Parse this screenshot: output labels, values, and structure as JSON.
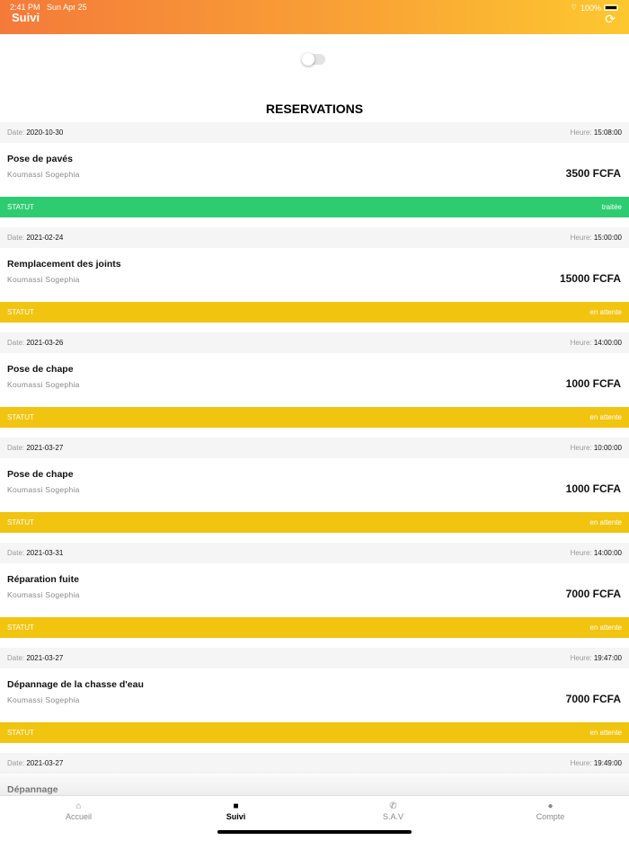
{
  "status_bar": {
    "time": "2:41 PM",
    "date": "Sun Apr 25",
    "battery": "100%"
  },
  "header": {
    "title": "Suivi",
    "refresh_icon": "refresh-icon"
  },
  "toggle": {
    "on": false
  },
  "section_title": "RESERVATIONS",
  "labels": {
    "date": "Date:",
    "heure": "Heure:",
    "statut": "STATUT"
  },
  "colors": {
    "traitee": "#2ecc71",
    "en_attente": "#f1c40f",
    "header_start": "#f47a3a",
    "header_end": "#fdc82f"
  },
  "reservations": [
    {
      "date": "2020-10-30",
      "heure": "15:08:00",
      "name": "Pose de pavés",
      "location": "Koumassi Sogephia",
      "price": "3500 FCFA",
      "status": "traitée"
    },
    {
      "date": "2021-02-24",
      "heure": "15:00:00",
      "name": "Remplacement des joints",
      "location": "Koumassi Sogephia",
      "price": "15000 FCFA",
      "status": "en attente"
    },
    {
      "date": "2021-03-26",
      "heure": "14:00:00",
      "name": "Pose de chape",
      "location": "Koumassi Sogephia",
      "price": "1000 FCFA",
      "status": "en attente"
    },
    {
      "date": "2021-03-27",
      "heure": "10:00:00",
      "name": "Pose de chape",
      "location": "Koumassi Sogephia",
      "price": "1000 FCFA",
      "status": "en attente"
    },
    {
      "date": "2021-03-31",
      "heure": "14:00:00",
      "name": "Réparation fuite",
      "location": "Koumassi Sogephia",
      "price": "7000 FCFA",
      "status": "en attente"
    },
    {
      "date": "2021-03-27",
      "heure": "19:47:00",
      "name": "Dépannage de la chasse d'eau",
      "location": "Koumassi Sogephia",
      "price": "7000 FCFA",
      "status": "en attente"
    },
    {
      "date": "2021-03-27",
      "heure": "19:49:00",
      "name": "Dépannage"
    }
  ],
  "tabs": [
    {
      "label": "Accueil",
      "icon": "home-icon"
    },
    {
      "label": "Suivi",
      "icon": "truck-icon",
      "active": true
    },
    {
      "label": "S.A.V",
      "icon": "phone-icon"
    },
    {
      "label": "Compte",
      "icon": "person-icon"
    }
  ]
}
